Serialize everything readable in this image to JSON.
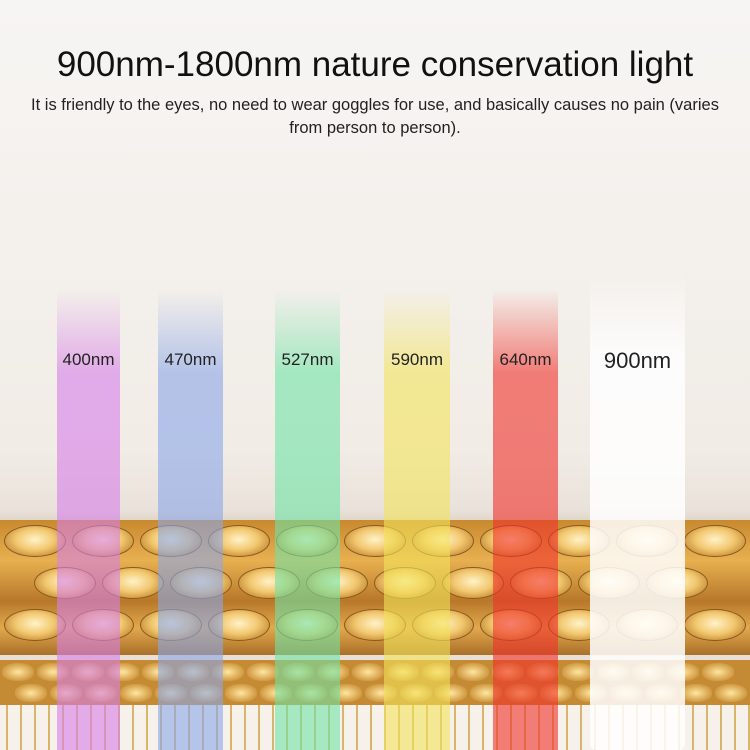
{
  "header": {
    "title": "900nm-1800nm nature conservation light",
    "subtitle": "It is friendly to the eyes, no need to wear goggles for use, and basically causes no pain (varies from person to person)."
  },
  "wavelengths": [
    {
      "label": "400nm",
      "color": "#d67ee8"
    },
    {
      "label": "470nm",
      "color": "#8aa6e8"
    },
    {
      "label": "527nm",
      "color": "#6fe3a6"
    },
    {
      "label": "590nm",
      "color": "#f2e35a"
    },
    {
      "label": "640nm",
      "color": "#f0302a"
    },
    {
      "label": "900nm",
      "color": "#ffffff"
    }
  ]
}
